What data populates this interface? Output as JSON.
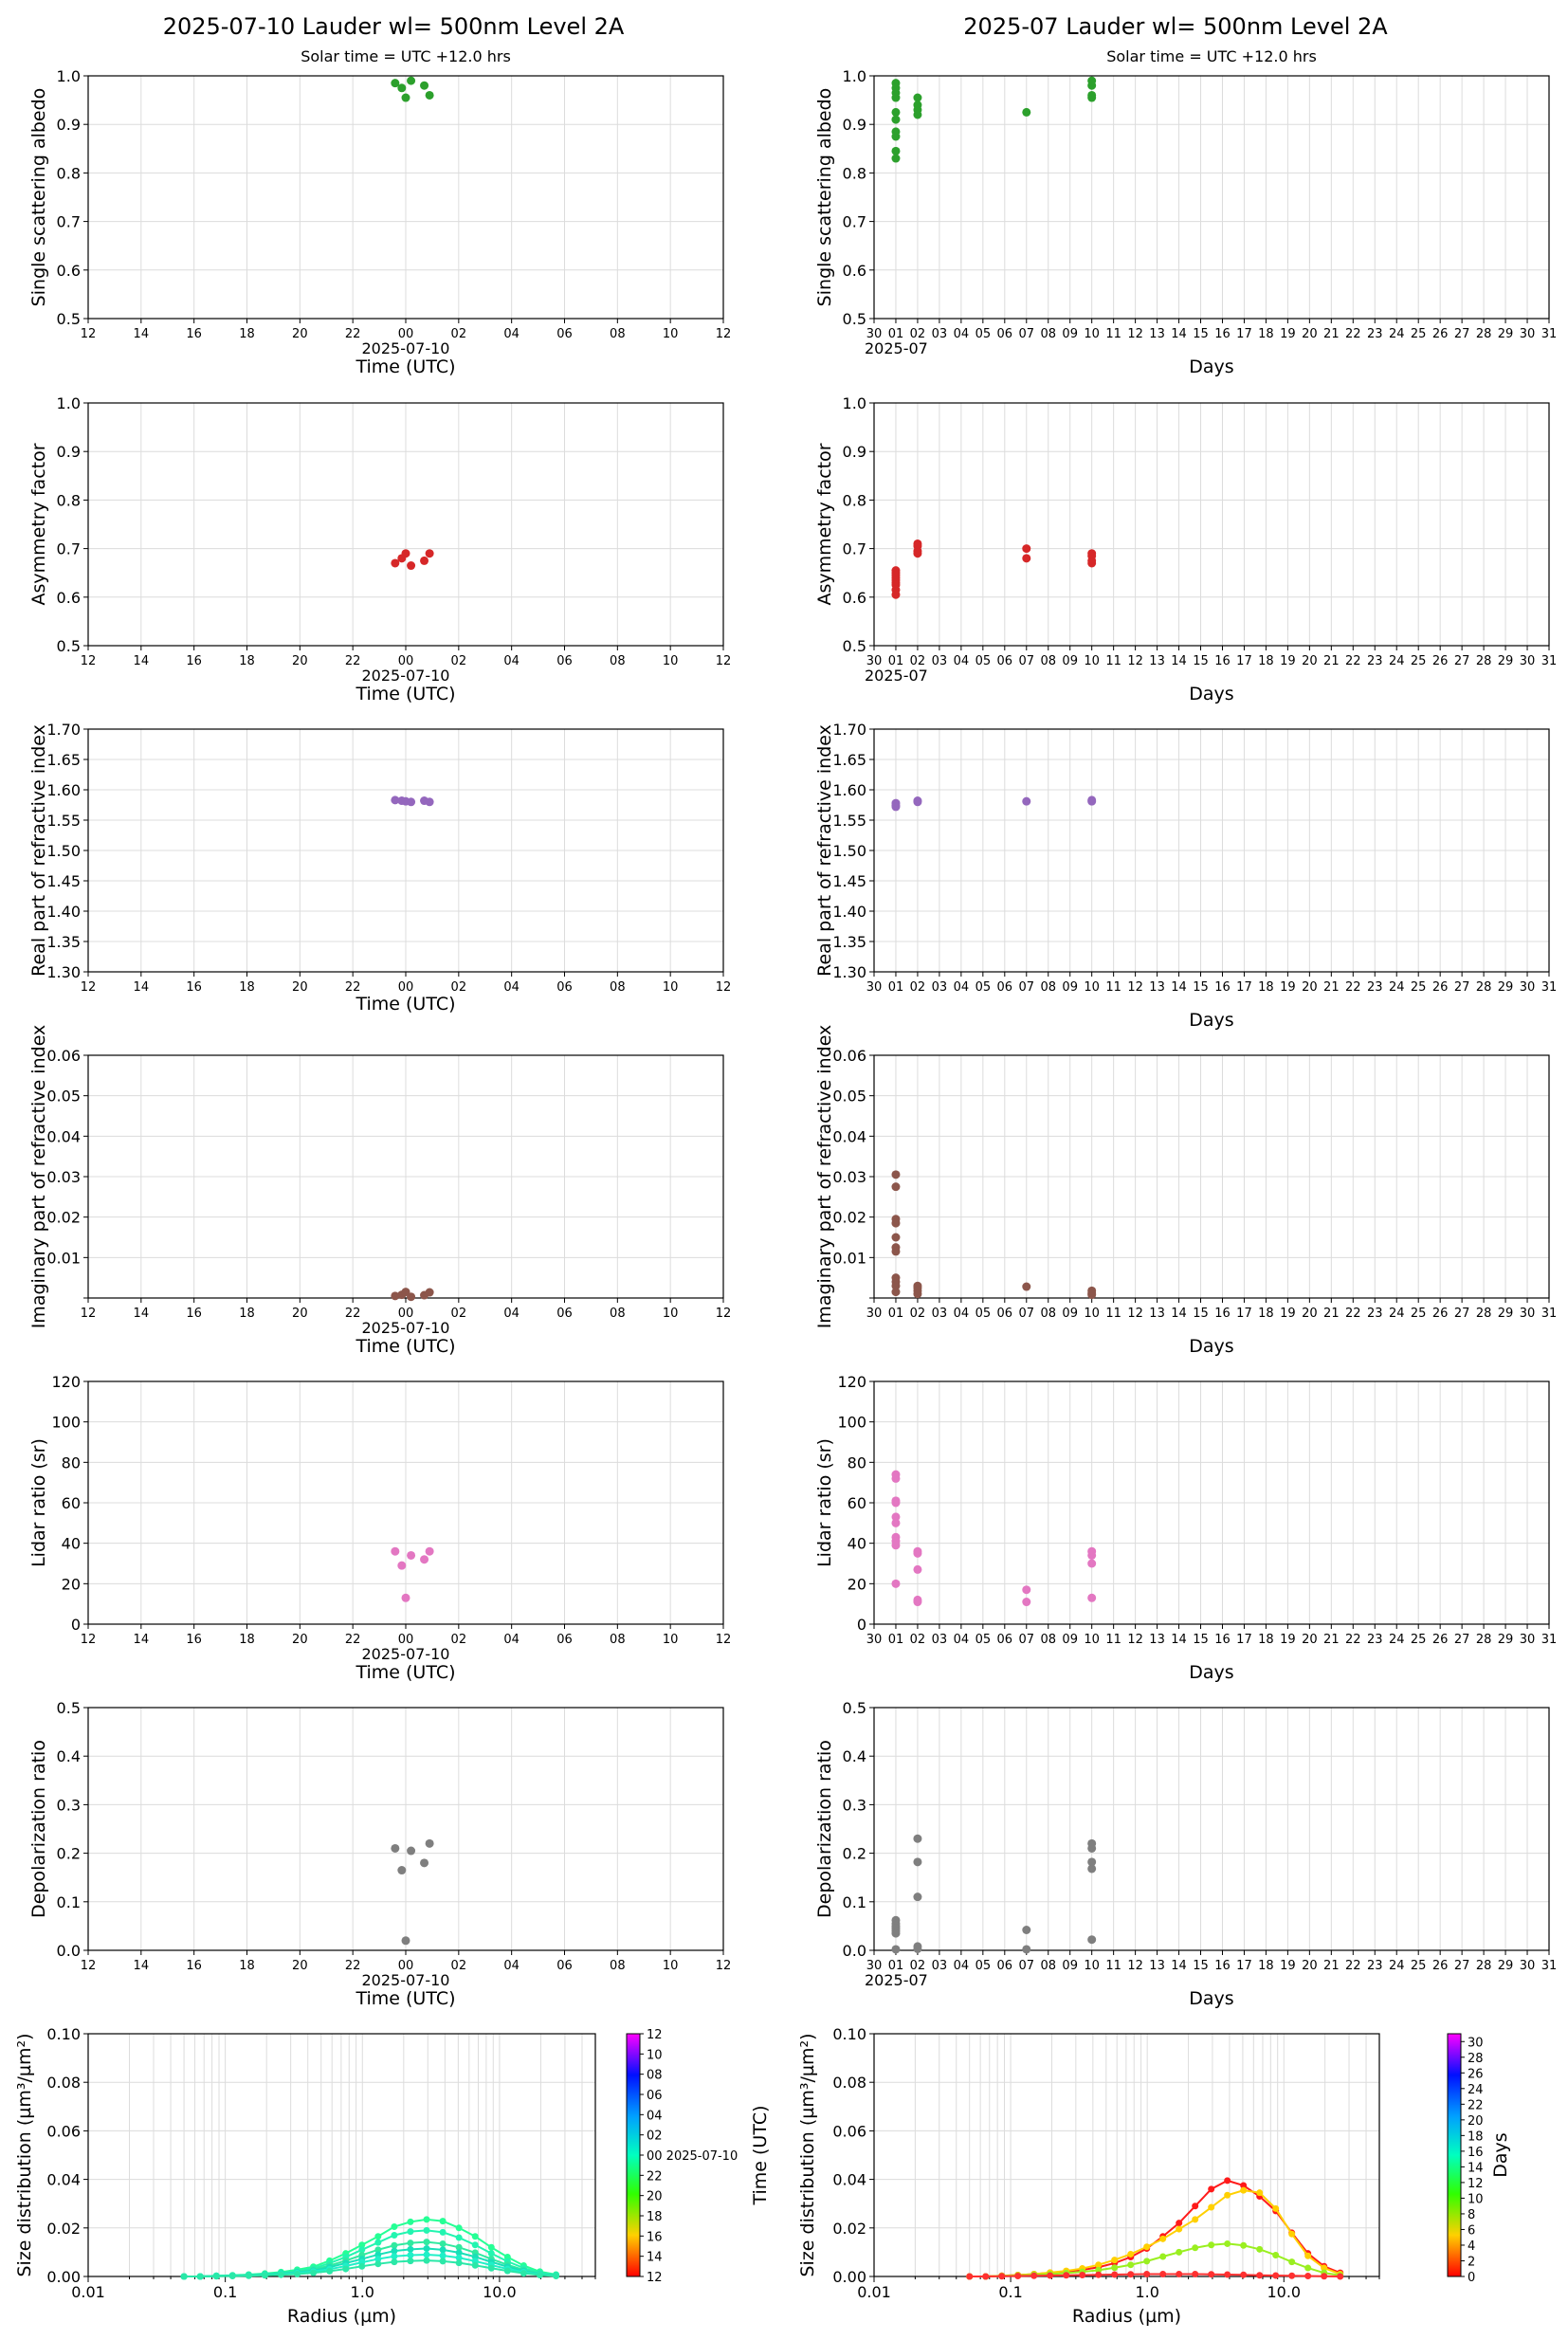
{
  "figure": {
    "left_title": "2025-07-10  Lauder  wl= 500nm  Level 2A",
    "right_title": "2025-07  Lauder  wl= 500nm  Level 2A",
    "left_subtitle": "Solar time = UTC +12.0 hrs",
    "right_subtitle": "Solar time = UTC +12.0 hrs"
  },
  "axes_common": {
    "daily_xticks": [
      "12",
      "14",
      "16",
      "18",
      "20",
      "22",
      "00",
      "02",
      "04",
      "06",
      "08",
      "10",
      "12"
    ],
    "daily_date": "2025-07-10",
    "daily_xlabel": "Time (UTC)",
    "monthly_xticks": [
      "30",
      "01",
      "02",
      "03",
      "04",
      "05",
      "06",
      "07",
      "08",
      "09",
      "10",
      "11",
      "12",
      "13",
      "14",
      "15",
      "16",
      "17",
      "18",
      "19",
      "20",
      "21",
      "22",
      "23",
      "24",
      "25",
      "26",
      "27",
      "28",
      "29",
      "30",
      "31"
    ],
    "monthly_month": "2025-07",
    "monthly_xlabel": "Days"
  },
  "colors": {
    "ssa": "#2ca02c",
    "asym": "#d62728",
    "real": "#9467bd",
    "imag": "#8c564b",
    "lidar": "#e377c2",
    "depol": "#7f7f7f"
  },
  "chart_data": [
    {
      "id": "ssa_daily",
      "type": "scatter",
      "panel": "left",
      "row": 0,
      "ylabel": "Single scattering albedo",
      "ylim": [
        0.5,
        1.0
      ],
      "yticks": [
        "0.5",
        "0.6",
        "0.7",
        "0.8",
        "0.9",
        "1.0"
      ],
      "x_hours_from_12utc_prev_day": [
        11.6,
        11.85,
        12.2,
        12.0,
        12.7,
        12.9
      ],
      "values": [
        0.985,
        0.975,
        0.99,
        0.955,
        0.98,
        0.96
      ]
    },
    {
      "id": "ssa_monthly",
      "type": "scatter",
      "panel": "right",
      "row": 0,
      "ylabel": "Single scattering albedo",
      "ylim": [
        0.5,
        1.0
      ],
      "yticks": [
        "0.5",
        "0.6",
        "0.7",
        "0.8",
        "0.9",
        "1.0"
      ],
      "x_day_of_month": [
        1,
        1,
        1,
        1,
        1,
        1,
        1,
        1,
        1,
        1,
        2,
        2,
        2,
        2,
        7,
        10,
        10,
        10,
        10
      ],
      "values": [
        0.985,
        0.975,
        0.965,
        0.955,
        0.925,
        0.91,
        0.885,
        0.875,
        0.845,
        0.83,
        0.955,
        0.94,
        0.93,
        0.92,
        0.925,
        0.99,
        0.98,
        0.96,
        0.955
      ]
    },
    {
      "id": "asym_daily",
      "type": "scatter",
      "panel": "left",
      "row": 1,
      "ylabel": "Asymmetry factor",
      "ylim": [
        0.5,
        1.0
      ],
      "yticks": [
        "0.5",
        "0.6",
        "0.7",
        "0.8",
        "0.9",
        "1.0"
      ],
      "x_hours_from_12utc_prev_day": [
        11.6,
        11.85,
        12.0,
        12.2,
        12.7,
        12.9
      ],
      "values": [
        0.67,
        0.68,
        0.69,
        0.665,
        0.675,
        0.69
      ]
    },
    {
      "id": "asym_monthly",
      "type": "scatter",
      "panel": "right",
      "row": 1,
      "ylabel": "Asymmetry factor",
      "ylim": [
        0.5,
        1.0
      ],
      "yticks": [
        "0.5",
        "0.6",
        "0.7",
        "0.8",
        "0.9",
        "1.0"
      ],
      "x_day_of_month": [
        1,
        1,
        1,
        1,
        1,
        1,
        1,
        1,
        1,
        2,
        2,
        2,
        2,
        7,
        7,
        10,
        10,
        10,
        10
      ],
      "values": [
        0.655,
        0.65,
        0.645,
        0.64,
        0.635,
        0.63,
        0.625,
        0.615,
        0.605,
        0.71,
        0.705,
        0.695,
        0.69,
        0.7,
        0.68,
        0.69,
        0.685,
        0.675,
        0.67
      ]
    },
    {
      "id": "real_daily",
      "type": "scatter",
      "panel": "left",
      "row": 2,
      "ylabel": "Real part of refractive index",
      "ylim": [
        1.3,
        1.7
      ],
      "yticks": [
        "1.30",
        "1.35",
        "1.40",
        "1.45",
        "1.50",
        "1.55",
        "1.60",
        "1.65",
        "1.70"
      ],
      "x_hours_from_12utc_prev_day": [
        11.6,
        11.85,
        12.0,
        12.2,
        12.7,
        12.9
      ],
      "values": [
        1.583,
        1.582,
        1.581,
        1.58,
        1.582,
        1.58
      ]
    },
    {
      "id": "real_monthly",
      "type": "scatter",
      "panel": "right",
      "row": 2,
      "ylabel": "Real part of refractive index",
      "ylim": [
        1.3,
        1.7
      ],
      "yticks": [
        "1.30",
        "1.35",
        "1.40",
        "1.45",
        "1.50",
        "1.55",
        "1.60",
        "1.65",
        "1.70"
      ],
      "x_day_of_month": [
        1,
        1,
        1,
        2,
        2,
        7,
        10,
        10
      ],
      "values": [
        1.578,
        1.574,
        1.572,
        1.582,
        1.58,
        1.581,
        1.583,
        1.581
      ]
    },
    {
      "id": "imag_daily",
      "type": "scatter",
      "panel": "left",
      "row": 3,
      "ylabel": "Imaginary part of refractive index",
      "ylim": [
        0.0,
        0.06
      ],
      "yticks": [
        "",
        "0.01",
        "0.02",
        "0.03",
        "0.04",
        "0.05",
        "0.06"
      ],
      "x_hours_from_12utc_prev_day": [
        11.6,
        11.85,
        12.0,
        12.2,
        12.7,
        12.9
      ],
      "values": [
        0.0005,
        0.0008,
        0.0015,
        0.0003,
        0.0007,
        0.0014
      ]
    },
    {
      "id": "imag_monthly",
      "type": "scatter",
      "panel": "right",
      "row": 3,
      "ylabel": "Imaginary part of refractive index",
      "ylim": [
        0.0,
        0.06
      ],
      "yticks": [
        "",
        "0.01",
        "0.02",
        "0.03",
        "0.04",
        "0.05",
        "0.06"
      ],
      "x_day_of_month": [
        1,
        1,
        1,
        1,
        1,
        1,
        1,
        1,
        1,
        1,
        1,
        2,
        2,
        2,
        2,
        7,
        10,
        10,
        10
      ],
      "values": [
        0.0305,
        0.0275,
        0.0195,
        0.0185,
        0.015,
        0.0125,
        0.0115,
        0.005,
        0.004,
        0.003,
        0.0015,
        0.003,
        0.0025,
        0.0018,
        0.001,
        0.0028,
        0.0018,
        0.0012,
        0.0008
      ]
    },
    {
      "id": "lidar_daily",
      "type": "scatter",
      "panel": "left",
      "row": 4,
      "ylabel": "Lidar ratio (sr)",
      "ylim": [
        0,
        120
      ],
      "yticks": [
        "0",
        "20",
        "40",
        "60",
        "80",
        "100",
        "120"
      ],
      "x_hours_from_12utc_prev_day": [
        11.6,
        11.85,
        12.0,
        12.2,
        12.7,
        12.9
      ],
      "values": [
        36,
        29,
        13,
        34,
        32,
        36
      ]
    },
    {
      "id": "lidar_monthly",
      "type": "scatter",
      "panel": "right",
      "row": 4,
      "ylabel": "Lidar ratio (sr)",
      "ylim": [
        0,
        120
      ],
      "yticks": [
        "0",
        "20",
        "40",
        "60",
        "80",
        "100",
        "120"
      ],
      "x_day_of_month": [
        1,
        1,
        1,
        1,
        1,
        1,
        1,
        1,
        1,
        1,
        2,
        2,
        2,
        2,
        2,
        7,
        7,
        10,
        10,
        10,
        10
      ],
      "values": [
        74,
        72,
        61,
        60,
        53,
        50,
        43,
        41,
        39,
        20,
        36,
        35,
        27,
        12,
        11,
        17,
        11,
        36,
        34,
        30,
        13
      ]
    },
    {
      "id": "depol_daily",
      "type": "scatter",
      "panel": "left",
      "row": 5,
      "ylabel": "Depolarization ratio",
      "ylim": [
        0.0,
        0.5
      ],
      "yticks": [
        "0.0",
        "0.1",
        "0.2",
        "0.3",
        "0.4",
        "0.5"
      ],
      "x_hours_from_12utc_prev_day": [
        11.6,
        11.85,
        12.0,
        12.2,
        12.7,
        12.9
      ],
      "values": [
        0.21,
        0.165,
        0.02,
        0.205,
        0.18,
        0.22
      ]
    },
    {
      "id": "depol_monthly",
      "type": "scatter",
      "panel": "right",
      "row": 5,
      "ylabel": "Depolarization ratio",
      "ylim": [
        0.0,
        0.5
      ],
      "yticks": [
        "0.0",
        "0.1",
        "0.2",
        "0.3",
        "0.4",
        "0.5"
      ],
      "x_day_of_month": [
        1,
        1,
        1,
        1,
        1,
        1,
        1,
        2,
        2,
        2,
        2,
        2,
        7,
        7,
        10,
        10,
        10,
        10,
        10
      ],
      "values": [
        0.062,
        0.055,
        0.05,
        0.045,
        0.04,
        0.035,
        0.002,
        0.23,
        0.182,
        0.11,
        0.008,
        0.003,
        0.042,
        0.002,
        0.22,
        0.21,
        0.182,
        0.168,
        0.022
      ]
    },
    {
      "id": "sizedist_daily",
      "type": "line",
      "panel": "left",
      "row": 6,
      "ylabel": "Size distribution (µm³/µm²)",
      "xlabel": "Radius (µm)",
      "xscale": "log",
      "xlim": [
        0.01,
        50
      ],
      "ylim": [
        0,
        0.1
      ],
      "xticks": [
        "0.01",
        "0.1",
        "1.0",
        "10.0"
      ],
      "yticks": [
        "0.00",
        "0.02",
        "0.04",
        "0.06",
        "0.08",
        "0.10"
      ],
      "radius": [
        0.05,
        0.0656,
        0.0861,
        0.1129,
        0.1482,
        0.1944,
        0.2551,
        0.3347,
        0.4392,
        0.5763,
        0.7561,
        0.9921,
        1.3017,
        1.7081,
        2.2412,
        2.9407,
        3.8587,
        5.0629,
        6.6433,
        8.7168,
        11.4377,
        15.0076,
        19.6918,
        25.8383
      ],
      "series": [
        {
          "name": "s1",
          "color": "#25ff95",
          "values": [
            0.0,
            0.0,
            0.0003,
            0.0005,
            0.0008,
            0.0012,
            0.0018,
            0.0028,
            0.004,
            0.0065,
            0.0095,
            0.013,
            0.0165,
            0.0205,
            0.0225,
            0.0235,
            0.0228,
            0.02,
            0.0165,
            0.012,
            0.008,
            0.0045,
            0.002,
            0.0008
          ]
        },
        {
          "name": "s2",
          "color": "#22f5b0",
          "values": [
            0.0,
            0.0,
            0.0003,
            0.0004,
            0.0007,
            0.001,
            0.0015,
            0.0023,
            0.0033,
            0.0055,
            0.008,
            0.011,
            0.014,
            0.017,
            0.0185,
            0.019,
            0.0182,
            0.016,
            0.013,
            0.0095,
            0.0062,
            0.0035,
            0.0016,
            0.0006
          ]
        },
        {
          "name": "s3",
          "color": "#30eaa0",
          "values": [
            0.0,
            0.0,
            0.0002,
            0.0004,
            0.0006,
            0.0009,
            0.0013,
            0.002,
            0.0028,
            0.0045,
            0.0065,
            0.0088,
            0.011,
            0.0128,
            0.0138,
            0.0142,
            0.0135,
            0.012,
            0.0098,
            0.0072,
            0.0048,
            0.0027,
            0.0012,
            0.0005
          ]
        },
        {
          "name": "s4",
          "color": "#18e0b8",
          "values": [
            0.0,
            0.0,
            0.0002,
            0.0003,
            0.0005,
            0.0008,
            0.0012,
            0.0017,
            0.0024,
            0.0038,
            0.0055,
            0.0072,
            0.009,
            0.0105,
            0.0112,
            0.0115,
            0.011,
            0.0098,
            0.0081,
            0.006,
            0.004,
            0.0023,
            0.001,
            0.0004
          ]
        },
        {
          "name": "s5",
          "color": "#20f0c8",
          "values": [
            0.0,
            0.0,
            0.0002,
            0.0003,
            0.0004,
            0.0006,
            0.0009,
            0.0014,
            0.002,
            0.003,
            0.0043,
            0.0058,
            0.0072,
            0.0083,
            0.0088,
            0.009,
            0.0086,
            0.0077,
            0.0063,
            0.0047,
            0.0031,
            0.0018,
            0.0008,
            0.0003
          ]
        },
        {
          "name": "s6",
          "color": "#2ae8a8",
          "values": [
            0.0,
            0.0,
            0.0001,
            0.0002,
            0.0003,
            0.0005,
            0.0007,
            0.001,
            0.0015,
            0.0022,
            0.0031,
            0.0042,
            0.0052,
            0.006,
            0.0064,
            0.0066,
            0.0063,
            0.0056,
            0.0046,
            0.0034,
            0.0023,
            0.0013,
            0.0006,
            0.0002
          ]
        }
      ],
      "colorbar": {
        "ticks": [
          "12",
          "14",
          "16",
          "18",
          "20",
          "22",
          "00 2025-07-10",
          "02",
          "04",
          "06",
          "08",
          "10",
          "12"
        ],
        "label": ""
      }
    },
    {
      "id": "sizedist_monthly",
      "type": "line",
      "panel": "right",
      "row": 6,
      "ylabel": "Size distribution (µm³/µm²)",
      "xlabel": "Radius (µm)",
      "xscale": "log",
      "xlim": [
        0.01,
        50
      ],
      "ylim": [
        0,
        0.1
      ],
      "xticks": [
        "0.01",
        "0.1",
        "1.0",
        "10.0"
      ],
      "yticks": [
        "0.00",
        "0.02",
        "0.04",
        "0.06",
        "0.08",
        "0.10"
      ],
      "radius": [
        0.05,
        0.0656,
        0.0861,
        0.1129,
        0.1482,
        0.1944,
        0.2551,
        0.3347,
        0.4392,
        0.5763,
        0.7561,
        0.9921,
        1.3017,
        1.7081,
        2.2412,
        2.9407,
        3.8587,
        5.0629,
        6.6433,
        8.7168,
        11.4377,
        15.0076,
        19.6918,
        25.8383
      ],
      "series": [
        {
          "name": "day01",
          "color": "#ff1a1a",
          "values": [
            0.0,
            0.0,
            0.0003,
            0.0006,
            0.001,
            0.0015,
            0.002,
            0.0027,
            0.0038,
            0.0055,
            0.008,
            0.0115,
            0.0165,
            0.022,
            0.029,
            0.036,
            0.0395,
            0.0375,
            0.033,
            0.027,
            0.018,
            0.0095,
            0.0042,
            0.0015
          ]
        },
        {
          "name": "day02",
          "color": "#ffd000",
          "values": [
            0.0,
            0.0,
            0.0003,
            0.0006,
            0.001,
            0.0016,
            0.0023,
            0.0033,
            0.0048,
            0.0068,
            0.0092,
            0.0122,
            0.0155,
            0.0195,
            0.0235,
            0.0285,
            0.0335,
            0.0355,
            0.0345,
            0.028,
            0.0175,
            0.0085,
            0.0035,
            0.001
          ]
        },
        {
          "name": "day07",
          "color": "#9aef20",
          "values": [
            0.0,
            0.0,
            0.0002,
            0.0004,
            0.0007,
            0.001,
            0.0014,
            0.0019,
            0.0026,
            0.0036,
            0.0048,
            0.0063,
            0.0082,
            0.01,
            0.0118,
            0.013,
            0.0135,
            0.0128,
            0.0112,
            0.0088,
            0.006,
            0.0035,
            0.0015,
            0.0005
          ]
        },
        {
          "name": "day10",
          "color": "#ff3030",
          "values": [
            0.0,
            0.0,
            0.0001,
            0.0002,
            0.0003,
            0.0004,
            0.0005,
            0.0006,
            0.0007,
            0.0008,
            0.0009,
            0.001,
            0.001,
            0.001,
            0.001,
            0.0009,
            0.0008,
            0.0007,
            0.0005,
            0.0004,
            0.0003,
            0.0002,
            0.0001,
            0.0
          ]
        }
      ],
      "colorbar": {
        "ticks": [
          "0",
          "2",
          "4",
          "6",
          "8",
          "10",
          "12",
          "14",
          "16",
          "18",
          "20",
          "22",
          "24",
          "26",
          "28",
          "30"
        ],
        "label": "Days",
        "left_label": "Time (UTC)"
      }
    }
  ]
}
